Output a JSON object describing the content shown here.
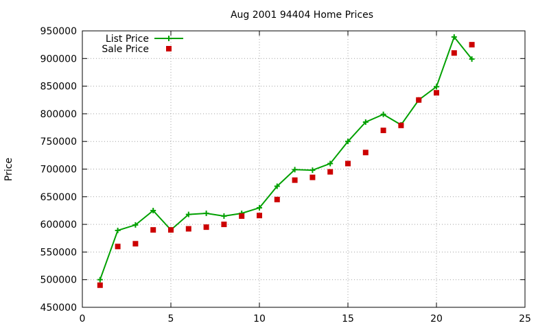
{
  "chart_data": {
    "type": "line",
    "title": "Aug 2001 94404 Home Prices",
    "xlabel": "",
    "ylabel": "Price",
    "xlim": [
      0,
      25
    ],
    "ylim": [
      450000,
      950000
    ],
    "x_ticks": [
      0,
      5,
      10,
      15,
      20,
      25
    ],
    "y_ticks": [
      450000,
      500000,
      550000,
      600000,
      650000,
      700000,
      750000,
      800000,
      850000,
      900000,
      950000
    ],
    "grid": true,
    "legend_position": "top-left",
    "x": [
      1,
      2,
      3,
      4,
      5,
      6,
      7,
      8,
      9,
      10,
      11,
      12,
      13,
      14,
      15,
      16,
      17,
      18,
      19,
      20,
      21,
      22
    ],
    "series": [
      {
        "name": "List Price",
        "style": "linespoints",
        "marker": "plus",
        "color": "#00a000",
        "values": [
          500000,
          589000,
          599000,
          625000,
          590000,
          618000,
          620000,
          615000,
          620000,
          630000,
          669000,
          699000,
          698000,
          710000,
          750000,
          785000,
          799000,
          780000,
          825000,
          849000,
          939000,
          899000
        ]
      },
      {
        "name": "Sale Price",
        "style": "points",
        "marker": "square",
        "color": "#cc0000",
        "values": [
          490000,
          560000,
          565000,
          590000,
          590000,
          592000,
          595000,
          600000,
          615000,
          616000,
          645000,
          680000,
          685000,
          695000,
          710000,
          730000,
          770000,
          779000,
          825000,
          838000,
          910000,
          925000
        ]
      }
    ]
  }
}
